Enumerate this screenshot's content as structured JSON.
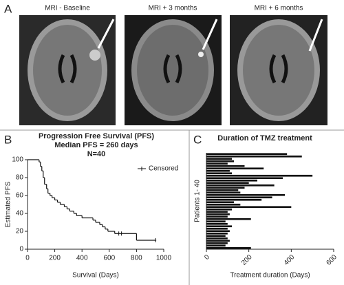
{
  "figure": {
    "panel_labels": [
      "A",
      "B",
      "C"
    ],
    "mri_labels": [
      "MRI - Baseline",
      "MRI + 3 months",
      "MRI + 6 months"
    ]
  },
  "chart_data": [
    {
      "type": "step",
      "title": "Progression Free Survival (PFS)",
      "subtitle": [
        "Median PFS = 260 days",
        "N=40"
      ],
      "x": [
        0,
        85,
        95,
        105,
        115,
        125,
        140,
        150,
        165,
        180,
        200,
        220,
        240,
        270,
        290,
        310,
        340,
        360,
        400,
        480,
        500,
        530,
        550,
        570,
        590,
        640,
        800,
        940
      ],
      "values": [
        100,
        97.5,
        92.5,
        87.5,
        80,
        72.5,
        67.5,
        62.5,
        60,
        57.5,
        55,
        52.5,
        50,
        47.5,
        45,
        42.5,
        40,
        37.5,
        35,
        32.5,
        30,
        27.5,
        25,
        22.5,
        20,
        17.5,
        10,
        10
      ],
      "color": "#111111",
      "censored": {
        "name": "Censored",
        "x": [
          670,
          690,
          940
        ]
      },
      "xlabel": "Survival (Days)",
      "ylabel": "Estimated PFS",
      "xlim": [
        0,
        1000
      ],
      "xticks": [
        0,
        200,
        400,
        600,
        800,
        1000
      ],
      "ylim": [
        0,
        100
      ],
      "yticks": [
        0,
        20,
        40,
        60,
        80,
        100
      ]
    },
    {
      "type": "hbar",
      "title": "Duration of TMZ treatment",
      "values": [
        380,
        450,
        120,
        130,
        100,
        180,
        270,
        110,
        120,
        500,
        360,
        240,
        200,
        320,
        180,
        150,
        160,
        370,
        310,
        260,
        130,
        160,
        400,
        120,
        100,
        110,
        100,
        210,
        90,
        100,
        120,
        100,
        110,
        100,
        90,
        100,
        110,
        100,
        90,
        210
      ],
      "color": "#111111",
      "xlabel": "Treatment duration (Days)",
      "ylabel": "Patients 1- 40",
      "xlim": [
        0,
        600
      ],
      "xticks": [
        0,
        200,
        400,
        600
      ]
    }
  ]
}
